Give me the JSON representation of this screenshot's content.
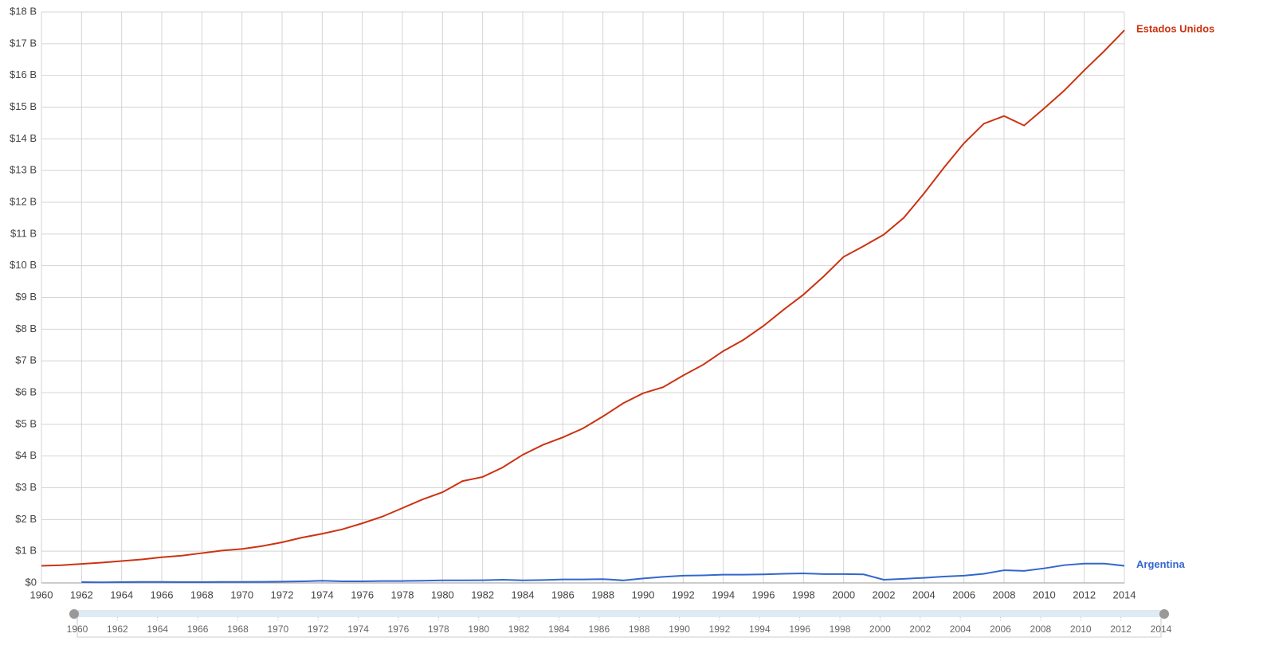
{
  "chart_data": {
    "type": "line",
    "x": [
      1960,
      1961,
      1962,
      1963,
      1964,
      1965,
      1966,
      1967,
      1968,
      1969,
      1970,
      1971,
      1972,
      1973,
      1974,
      1975,
      1976,
      1977,
      1978,
      1979,
      1980,
      1981,
      1982,
      1983,
      1984,
      1985,
      1986,
      1987,
      1988,
      1989,
      1990,
      1991,
      1992,
      1993,
      1994,
      1995,
      1996,
      1997,
      1998,
      1999,
      2000,
      2001,
      2002,
      2003,
      2004,
      2005,
      2006,
      2007,
      2008,
      2009,
      2010,
      2011,
      2012,
      2013,
      2014
    ],
    "series": [
      {
        "name": "Estados Unidos",
        "color": "#cc3311",
        "values": [
          0.54,
          0.56,
          0.6,
          0.64,
          0.69,
          0.74,
          0.81,
          0.86,
          0.94,
          1.02,
          1.07,
          1.16,
          1.28,
          1.43,
          1.55,
          1.69,
          1.88,
          2.09,
          2.36,
          2.63,
          2.86,
          3.21,
          3.34,
          3.64,
          4.04,
          4.35,
          4.59,
          4.87,
          5.25,
          5.66,
          5.98,
          6.17,
          6.54,
          6.88,
          7.31,
          7.66,
          8.1,
          8.61,
          9.09,
          9.66,
          10.28,
          10.62,
          10.98,
          11.51,
          12.27,
          13.09,
          13.86,
          14.48,
          14.72,
          14.42,
          14.96,
          15.52,
          16.16,
          16.77,
          17.42
        ]
      },
      {
        "name": "Argentina",
        "color": "#3366cc",
        "values": [
          null,
          null,
          0.025,
          0.02,
          0.025,
          0.03,
          0.03,
          0.025,
          0.025,
          0.03,
          0.03,
          0.035,
          0.04,
          0.05,
          0.07,
          0.05,
          0.05,
          0.06,
          0.06,
          0.07,
          0.08,
          0.08,
          0.085,
          0.1,
          0.08,
          0.09,
          0.11,
          0.11,
          0.12,
          0.08,
          0.14,
          0.19,
          0.23,
          0.24,
          0.26,
          0.26,
          0.27,
          0.29,
          0.3,
          0.28,
          0.28,
          0.27,
          0.1,
          0.13,
          0.16,
          0.2,
          0.23,
          0.29,
          0.4,
          0.38,
          0.46,
          0.56,
          0.61,
          0.61,
          0.54
        ]
      }
    ],
    "xlim": [
      1960,
      2014
    ],
    "xticks": [
      1960,
      1962,
      1964,
      1966,
      1968,
      1970,
      1972,
      1974,
      1976,
      1978,
      1980,
      1982,
      1984,
      1986,
      1988,
      1990,
      1992,
      1994,
      1996,
      1998,
      2000,
      2002,
      2004,
      2006,
      2008,
      2010,
      2012,
      2014
    ],
    "ylim": [
      0,
      18
    ],
    "yticks": [
      {
        "value": 0,
        "label": "$0"
      },
      {
        "value": 1,
        "label": "$1 B"
      },
      {
        "value": 2,
        "label": "$2 B"
      },
      {
        "value": 3,
        "label": "$3 B"
      },
      {
        "value": 4,
        "label": "$4 B"
      },
      {
        "value": 5,
        "label": "$5 B"
      },
      {
        "value": 6,
        "label": "$6 B"
      },
      {
        "value": 7,
        "label": "$7 B"
      },
      {
        "value": 8,
        "label": "$8 B"
      },
      {
        "value": 9,
        "label": "$9 B"
      },
      {
        "value": 10,
        "label": "$10 B"
      },
      {
        "value": 11,
        "label": "$11 B"
      },
      {
        "value": 12,
        "label": "$12 B"
      },
      {
        "value": 13,
        "label": "$13 B"
      },
      {
        "value": 14,
        "label": "$14 B"
      },
      {
        "value": 15,
        "label": "$15 B"
      },
      {
        "value": 16,
        "label": "$16 B"
      },
      {
        "value": 17,
        "label": "$17 B"
      },
      {
        "value": 18,
        "label": "$18 B"
      }
    ],
    "grid": true,
    "legend": "line-end"
  }
}
